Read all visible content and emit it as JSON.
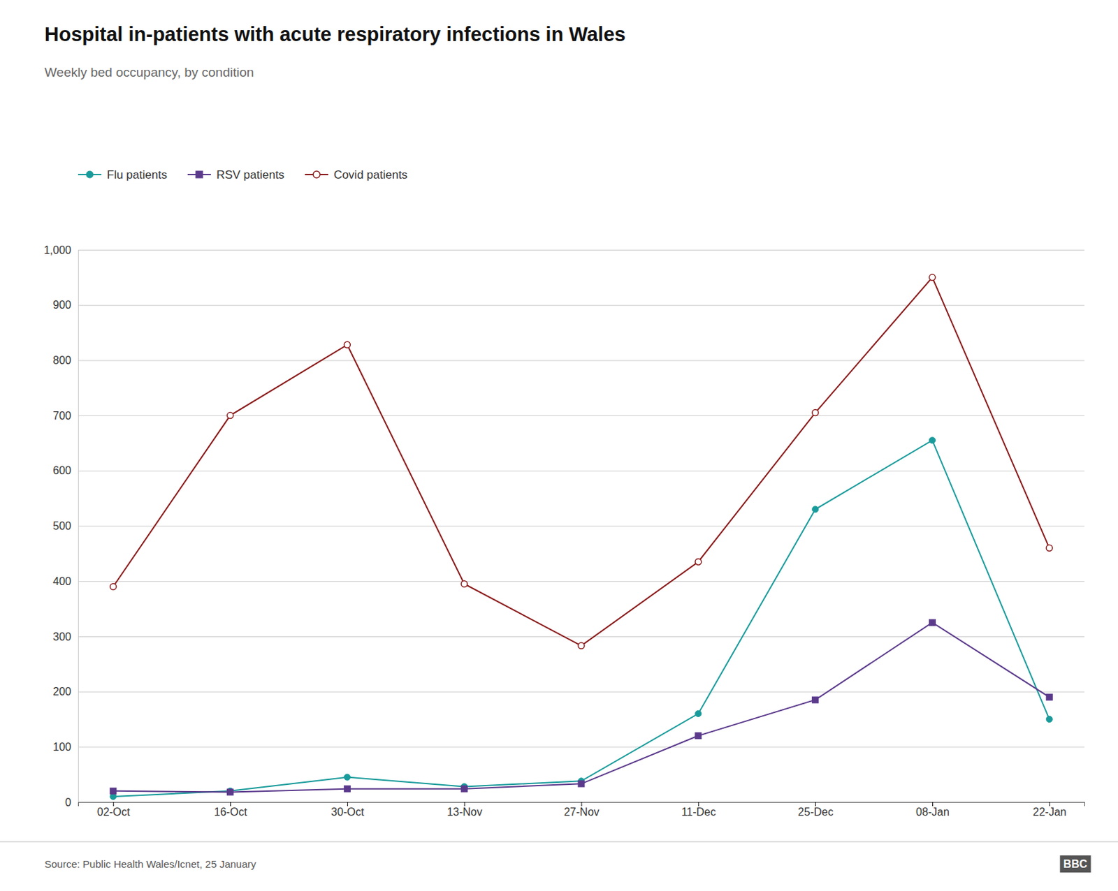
{
  "chart_data": {
    "type": "line",
    "title": "Hospital in-patients with acute respiratory infections in Wales",
    "subtitle": "Weekly bed occupancy, by condition",
    "source": "Source: Public Health Wales/Icnet, 25 January",
    "annotations": [
      "BBC"
    ],
    "categories": [
      "02-Oct",
      "16-Oct",
      "30-Oct",
      "13-Nov",
      "27-Nov",
      "11-Dec",
      "25-Dec",
      "08-Jan",
      "22-Jan"
    ],
    "series": [
      {
        "name": "Flu patients",
        "color": "#1a9b9b",
        "marker": "circle",
        "values": [
          10,
          20,
          45,
          28,
          38,
          160,
          530,
          655,
          150
        ]
      },
      {
        "name": "RSV patients",
        "color": "#5b3a8c",
        "marker": "square",
        "values": [
          20,
          18,
          24,
          24,
          33,
          120,
          185,
          325,
          190
        ]
      },
      {
        "name": "Covid patients",
        "color": "#8b1a1a",
        "marker": "open-circle",
        "values": [
          390,
          700,
          828,
          395,
          283,
          435,
          705,
          950,
          460
        ]
      }
    ],
    "ylim": [
      0,
      1000
    ],
    "yticks": [
      0,
      100,
      200,
      300,
      400,
      500,
      600,
      700,
      800,
      900,
      {
        "value": 1000,
        "label": "1,000"
      }
    ],
    "grid": true,
    "legend": "top-left"
  }
}
